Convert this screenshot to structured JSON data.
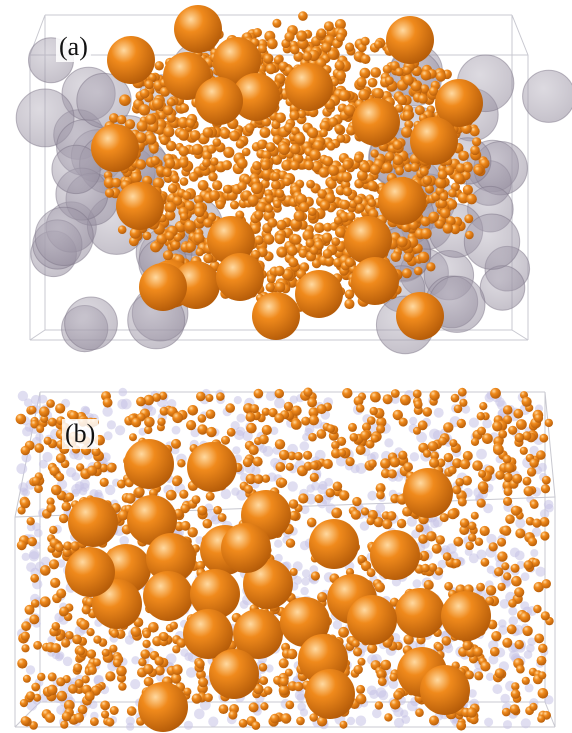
{
  "panels": [
    {
      "id": "a",
      "label": "(a)"
    },
    {
      "id": "b",
      "label": "(b)"
    }
  ],
  "colors": {
    "sphere_orange": "#f08a1c",
    "sphere_orange_dark": "#b35a08",
    "sphere_highlight": "#ffd9a0",
    "ghost_gray": "#8c8496",
    "ghost_lavender": "#c7c2e6",
    "box_edge": "#c8c8d0"
  }
}
